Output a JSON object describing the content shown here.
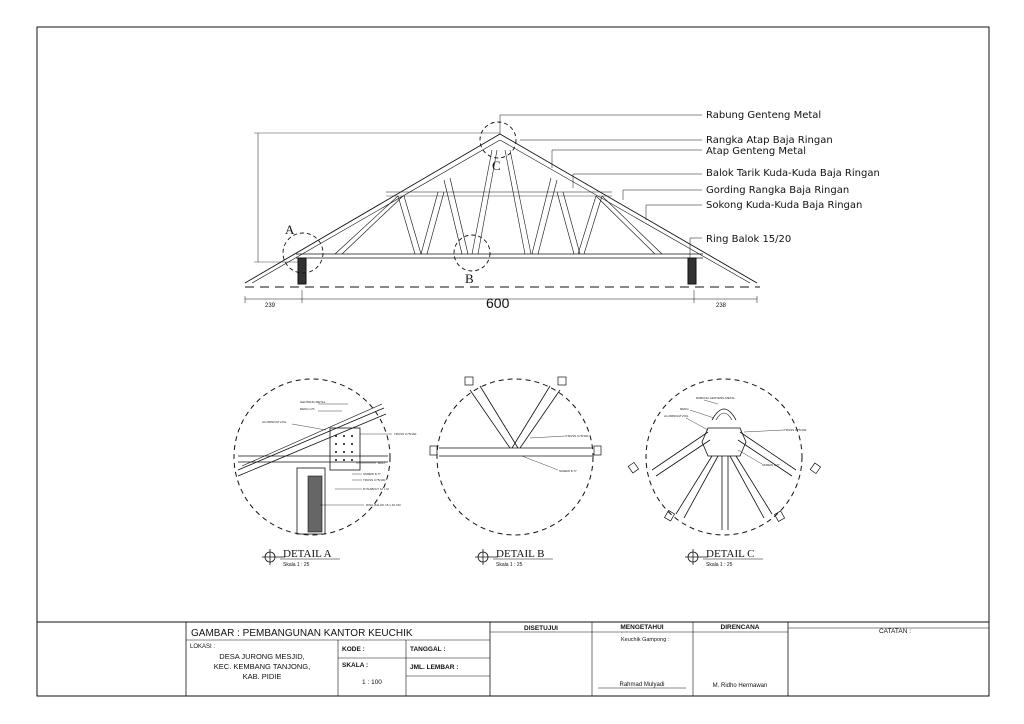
{
  "truss": {
    "labels": {
      "rabung": "Rabung Genteng Metal",
      "rangka": "Rangka Atap Baja Ringan",
      "atap": "Atap Genteng Metal",
      "balok": "Balok Tarik Kuda-Kuda Baja Ringan",
      "gording": "Gording Rangka Baja Ringan",
      "sokong": "Sokong Kuda-Kuda Baja Ringan",
      "ring": "Ring Balok 15/20"
    },
    "markers": {
      "a": "A",
      "b": "B",
      "c": "C"
    },
    "dims": {
      "left": "239",
      "span": "600",
      "right": "238"
    }
  },
  "details": {
    "a": {
      "title": "DETAIL A",
      "scale": "Skala 1 : 25",
      "notes": [
        "GENTENG METAL",
        "RENG C/S",
        "ALUMINIUM VOIL",
        "TRUSS C75/100",
        "BOLT",
        "SKREW 8.77",
        "TRUSS C75/100",
        "DYNABOLT 12 x M",
        "RING BALOK 15 x 20 CM"
      ]
    },
    "b": {
      "title": "DETAIL B",
      "scale": "Skala 1 : 25",
      "notes": [
        "TRUSS C75/100",
        "SKREW 8.77"
      ]
    },
    "c": {
      "title": "DETAIL C",
      "scale": "Skala 1 : 25",
      "notes": [
        "RABUNG GENTENG METAL",
        "RENG",
        "ALUMINIUM VOIL",
        "TRUSS C75/100",
        "SKREW 8.77"
      ]
    }
  },
  "title_block": {
    "gambar": "GAMBAR : PEMBANGUNAN KANTOR KEUCHIK",
    "lokasi_label": "LOKASI :",
    "lokasi_lines": [
      "DESA JURONG MESJID,",
      "KEC. KEMBANG TANJONG,",
      "KAB. PIDIE"
    ],
    "kode": "KODE   :",
    "tanggal": "TANGGAL :",
    "skala": "SKALA   :",
    "skala_value": "1 : 100",
    "jml_lembar": "JML. LEMBAR :",
    "disetujui": "DISETUJUI",
    "mengetahui": "MENGETAHUI",
    "keuchik": "Keuchik Gampong :",
    "mengetahui_name": "Rahmad Mulyadi",
    "direncana": "DIRENCANA",
    "direncana_name": "M. Ridho Hermawan",
    "catatan": "CATATAN :"
  }
}
